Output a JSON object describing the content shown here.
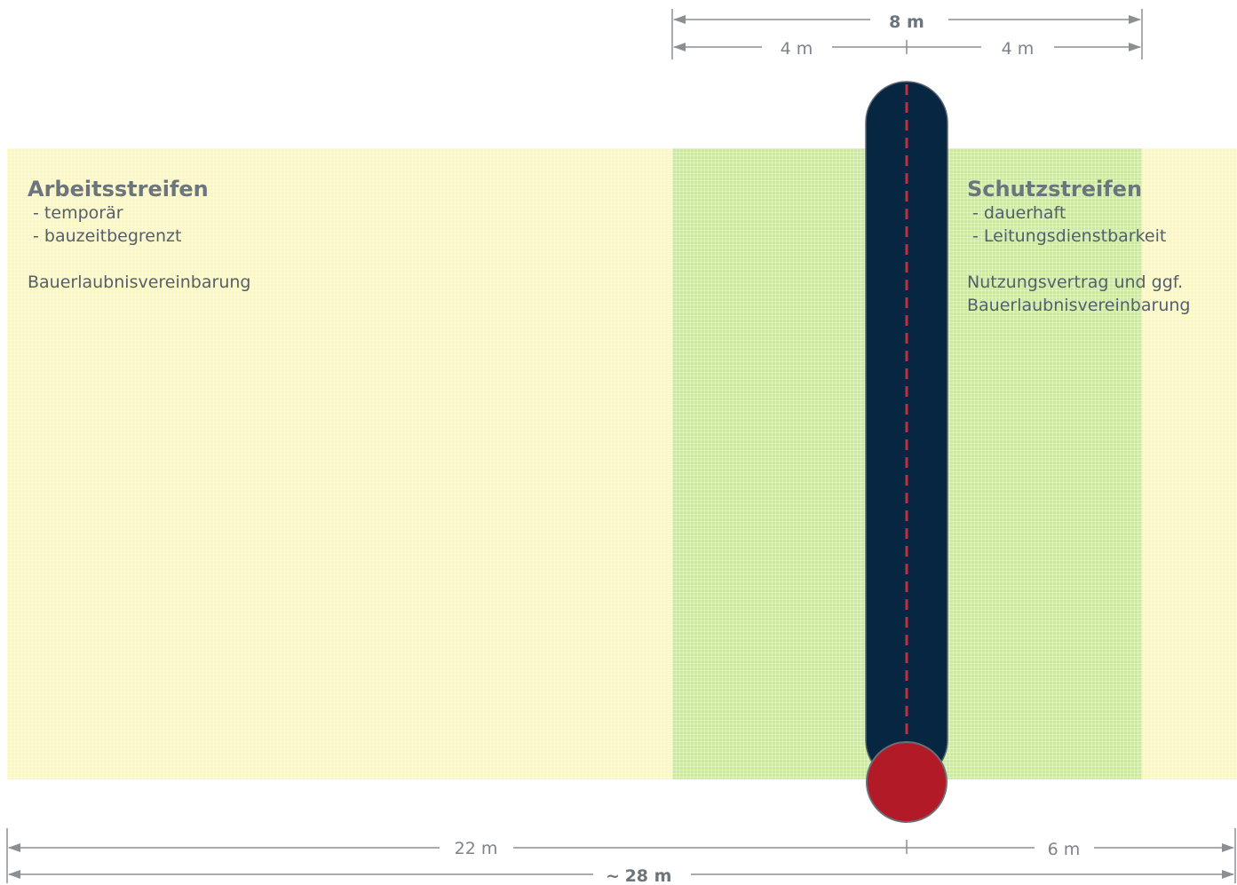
{
  "dimensions": {
    "top_total": "8 m",
    "top_left": "4 m",
    "top_right": "4 m",
    "bottom_left": "22 m",
    "bottom_right": "6 m",
    "bottom_total_prefix": "~",
    "bottom_total": "28 m"
  },
  "arbeitsstreifen": {
    "title": "Arbeitsstreifen",
    "line1": " - temporär",
    "line2": " - bauzeitbegrenzt",
    "note": "Bauerlaubnisvereinbarung"
  },
  "schutzstreifen": {
    "title": "Schutzstreifen",
    "line1": " - dauerhaft",
    "line2": " - Leitungsdienstbarkeit",
    "note1": "Nutzungsvertrag und ggf.",
    "note2": "Bauerlaubnisvereinbarung"
  },
  "colors": {
    "work_strip": "#fbf7bf",
    "protect_strip": "#cde8a6",
    "pipe": "#062642",
    "pipe_end": "#b31a27",
    "centerline": "#c0303c",
    "dimension_line": "#8a8f94"
  }
}
